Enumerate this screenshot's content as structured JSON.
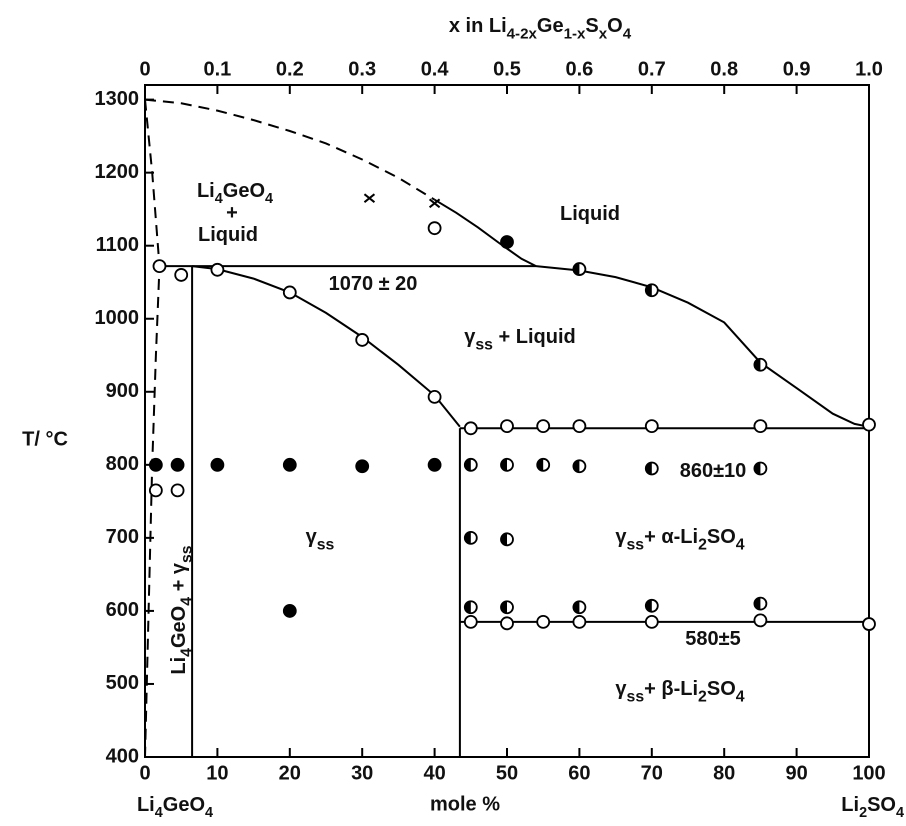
{
  "chart_data": {
    "type": "scatter",
    "x_label": "mole %",
    "y_label": "T/ °C",
    "x2_label": [
      "x in Li",
      "4-2x",
      "Ge",
      "1-x",
      "S",
      "x",
      "O",
      "4"
    ],
    "xlim": [
      0,
      100
    ],
    "xticks": [
      0,
      10,
      20,
      30,
      40,
      50,
      60,
      70,
      80,
      90,
      100
    ],
    "x2lim": [
      0,
      1
    ],
    "x2ticks": [
      0,
      0.1,
      0.2,
      0.3,
      0.4,
      0.5,
      0.6,
      0.7,
      0.8,
      0.9,
      {
        "value": 1,
        "label": "1.0"
      }
    ],
    "ylim": [
      400,
      1320
    ],
    "yticks": [
      400,
      500,
      600,
      700,
      800,
      900,
      1000,
      1100,
      1200,
      1300
    ],
    "end_labels": [
      [
        "Li",
        "4",
        "GeO",
        "4"
      ],
      [
        "Li",
        "2",
        "SO",
        "4"
      ]
    ],
    "annotations": [
      [
        "Li",
        "4",
        "GeO",
        "4"
      ],
      [
        "+"
      ],
      [
        "Liquid"
      ],
      [
        "Liquid"
      ],
      [
        "1070 ± 20"
      ],
      [
        "γ",
        "ss",
        " + Liquid"
      ],
      [
        "860±10"
      ],
      [
        "γ",
        "ss"
      ],
      [
        "γ",
        "ss",
        "+ α-Li",
        "2",
        "SO",
        "4"
      ],
      [
        "580±5"
      ],
      [
        "γ",
        "ss",
        "+ β-Li",
        "2",
        "SO",
        "4"
      ],
      [
        "Li",
        "4",
        "GeO",
        "4",
        " + γ",
        "ss"
      ]
    ],
    "series": [
      {
        "marker": "open",
        "color": "#000000",
        "x": [
          2,
          5,
          10,
          20,
          30,
          40,
          45,
          50,
          55,
          60,
          70,
          85,
          100,
          45,
          50,
          55,
          60,
          70,
          85,
          100,
          1.5,
          4.5,
          40
        ],
        "y": [
          1072,
          1060,
          1067,
          1036,
          971,
          893,
          850,
          853,
          853,
          853,
          853,
          853,
          855,
          585,
          583,
          585,
          585,
          585,
          587,
          582,
          765,
          765,
          1124
        ]
      },
      {
        "marker": "filled",
        "color": "#000000",
        "x": [
          1.5,
          4.5,
          10,
          20,
          30,
          40,
          20,
          50
        ],
        "y": [
          800,
          800,
          800,
          800,
          798,
          800,
          600,
          1105
        ]
      },
      {
        "marker": "half",
        "color": "#000000",
        "x": [
          45,
          50,
          55,
          60,
          70,
          85,
          45,
          50,
          45,
          50,
          60,
          70,
          85,
          60,
          70,
          85
        ],
        "y": [
          800,
          800,
          800,
          798,
          795,
          795,
          700,
          698,
          605,
          605,
          605,
          607,
          610,
          1068,
          1039,
          937
        ]
      },
      {
        "marker": "cross",
        "color": "#000000",
        "x": [
          31,
          40
        ],
        "y": [
          1165,
          1158
        ]
      }
    ],
    "lines": [
      {
        "style": "dashed",
        "x": [
          0,
          5,
          10,
          15,
          20,
          25,
          30,
          35,
          40
        ],
        "y": [
          1300,
          1295,
          1285,
          1272,
          1257,
          1240,
          1218,
          1193,
          1163
        ]
      },
      {
        "style": "solid",
        "x": [
          40,
          43,
          46,
          49,
          52,
          54
        ],
        "y": [
          1163,
          1145,
          1125,
          1103,
          1082,
          1072
        ]
      },
      {
        "style": "solid",
        "x": [
          54,
          60,
          65,
          70,
          75,
          80,
          85,
          90,
          95,
          98,
          100
        ],
        "y": [
          1072,
          1066,
          1057,
          1043,
          1022,
          995,
          940,
          905,
          870,
          856,
          852
        ]
      },
      {
        "style": "solid",
        "x": [
          2,
          54
        ],
        "y": [
          1072,
          1072
        ]
      },
      {
        "style": "solid",
        "x": [
          6.5,
          10,
          15,
          20,
          25,
          30,
          35,
          40,
          43.5
        ],
        "y": [
          1072,
          1068,
          1055,
          1036,
          1008,
          975,
          937,
          895,
          852
        ]
      },
      {
        "style": "solid",
        "x": [
          43.5,
          100
        ],
        "y": [
          850,
          850
        ]
      },
      {
        "style": "solid",
        "x": [
          43.5,
          100
        ],
        "y": [
          585,
          585
        ]
      },
      {
        "style": "solid",
        "x": [
          6.5,
          6.5
        ],
        "y": [
          400,
          1072
        ]
      },
      {
        "style": "solid",
        "x": [
          43.5,
          43.5
        ],
        "y": [
          400,
          850
        ]
      },
      {
        "style": "dashed",
        "x": [
          0,
          1,
          2,
          1.5,
          1,
          0.5,
          0
        ],
        "y": [
          1300,
          1200,
          1072,
          950,
          800,
          600,
          400
        ]
      }
    ]
  }
}
